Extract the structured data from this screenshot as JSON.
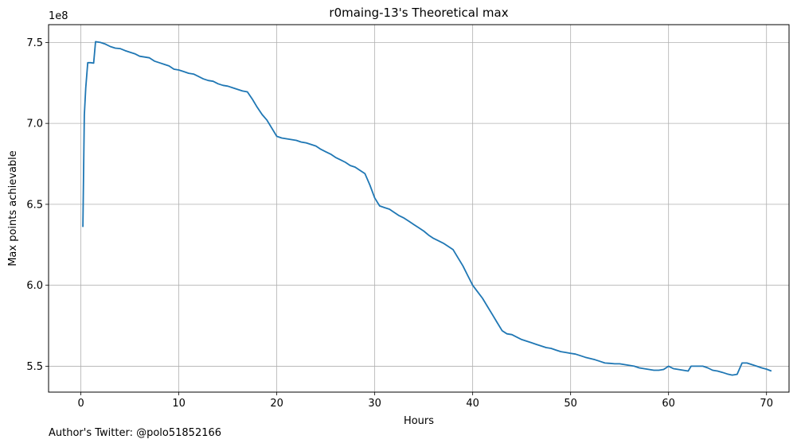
{
  "chart_data": {
    "type": "line",
    "title": "r0maing-13's Theoretical max",
    "xlabel": "Hours",
    "ylabel": "Max points achievable",
    "y_offset_label": "1e8",
    "y_scale_factor": 100000000,
    "xlim": [
      -3.3,
      72.3
    ],
    "ylim": [
      5.34,
      7.61
    ],
    "x_ticks": [
      0,
      10,
      20,
      30,
      40,
      50,
      60,
      70
    ],
    "y_ticks": [
      5.5,
      6.0,
      6.5,
      7.0,
      7.5
    ],
    "y_tick_labels": [
      "5.5",
      "6.0",
      "6.5",
      "7.0",
      "7.5"
    ],
    "grid": true,
    "series": [
      {
        "color": "#1f77b4",
        "x": [
          0.2,
          0.35,
          0.5,
          0.7,
          1.0,
          1.3,
          1.5,
          2.0,
          2.5,
          3.0,
          3.5,
          4.0,
          4.5,
          5.0,
          5.5,
          6.0,
          6.5,
          7.0,
          7.5,
          8.0,
          8.5,
          9.0,
          9.5,
          10.0,
          10.5,
          11.0,
          11.5,
          12.0,
          12.5,
          13.0,
          13.5,
          14.0,
          14.5,
          15.0,
          15.5,
          16.0,
          16.5,
          17.0,
          17.5,
          18.0,
          18.5,
          19.0,
          19.5,
          20.0,
          20.5,
          21.0,
          21.5,
          22.0,
          22.5,
          23.0,
          23.5,
          24.0,
          24.5,
          25.0,
          25.5,
          26.0,
          26.5,
          27.0,
          27.5,
          28.0,
          28.5,
          29.0,
          29.5,
          30.0,
          30.5,
          31.0,
          31.5,
          32.0,
          32.5,
          33.0,
          33.5,
          34.0,
          34.5,
          35.0,
          35.5,
          36.0,
          36.5,
          37.0,
          37.5,
          38.0,
          38.5,
          39.0,
          39.5,
          40.0,
          40.5,
          41.0,
          41.5,
          42.0,
          42.5,
          43.0,
          43.5,
          44.0,
          44.5,
          45.0,
          45.5,
          46.0,
          46.5,
          47.0,
          47.5,
          48.0,
          48.5,
          49.0,
          49.5,
          50.0,
          50.5,
          51.0,
          51.5,
          52.0,
          52.5,
          53.0,
          53.5,
          54.0,
          54.5,
          55.0,
          55.5,
          56.0,
          56.5,
          57.0,
          57.5,
          58.0,
          58.5,
          59.0,
          59.5,
          60.0,
          60.5,
          61.0,
          61.5,
          62.0,
          62.3,
          62.6,
          63.0,
          63.5,
          64.0,
          64.5,
          65.0,
          65.5,
          66.0,
          66.5,
          67.0,
          67.5,
          68.0,
          68.5,
          69.0,
          69.5,
          70.0,
          70.5
        ],
        "y": [
          6.36,
          7.05,
          7.22,
          7.375,
          7.375,
          7.372,
          7.505,
          7.5,
          7.49,
          7.475,
          7.465,
          7.462,
          7.45,
          7.44,
          7.43,
          7.415,
          7.41,
          7.405,
          7.385,
          7.375,
          7.365,
          7.355,
          7.335,
          7.33,
          7.32,
          7.31,
          7.305,
          7.29,
          7.275,
          7.265,
          7.26,
          7.245,
          7.235,
          7.23,
          7.22,
          7.21,
          7.2,
          7.195,
          7.15,
          7.1,
          7.055,
          7.02,
          6.97,
          6.92,
          6.91,
          6.905,
          6.9,
          6.895,
          6.885,
          6.88,
          6.87,
          6.86,
          6.84,
          6.825,
          6.81,
          6.79,
          6.775,
          6.76,
          6.74,
          6.73,
          6.71,
          6.69,
          6.62,
          6.54,
          6.49,
          6.48,
          6.47,
          6.45,
          6.43,
          6.415,
          6.395,
          6.375,
          6.355,
          6.335,
          6.31,
          6.29,
          6.275,
          6.26,
          6.24,
          6.22,
          6.17,
          6.12,
          6.06,
          6.0,
          5.96,
          5.92,
          5.87,
          5.82,
          5.77,
          5.72,
          5.7,
          5.695,
          5.68,
          5.665,
          5.655,
          5.645,
          5.635,
          5.625,
          5.615,
          5.61,
          5.6,
          5.59,
          5.585,
          5.58,
          5.575,
          5.565,
          5.555,
          5.548,
          5.54,
          5.53,
          5.52,
          5.518,
          5.515,
          5.515,
          5.51,
          5.505,
          5.5,
          5.49,
          5.485,
          5.48,
          5.475,
          5.475,
          5.48,
          5.5,
          5.485,
          5.48,
          5.475,
          5.47,
          5.5,
          5.5,
          5.5,
          5.5,
          5.49,
          5.475,
          5.47,
          5.462,
          5.452,
          5.445,
          5.45,
          5.52,
          5.52,
          5.51,
          5.5,
          5.49,
          5.482,
          5.47
        ]
      }
    ]
  },
  "footer": {
    "author_text": "Author's Twitter: @polo51852166"
  }
}
